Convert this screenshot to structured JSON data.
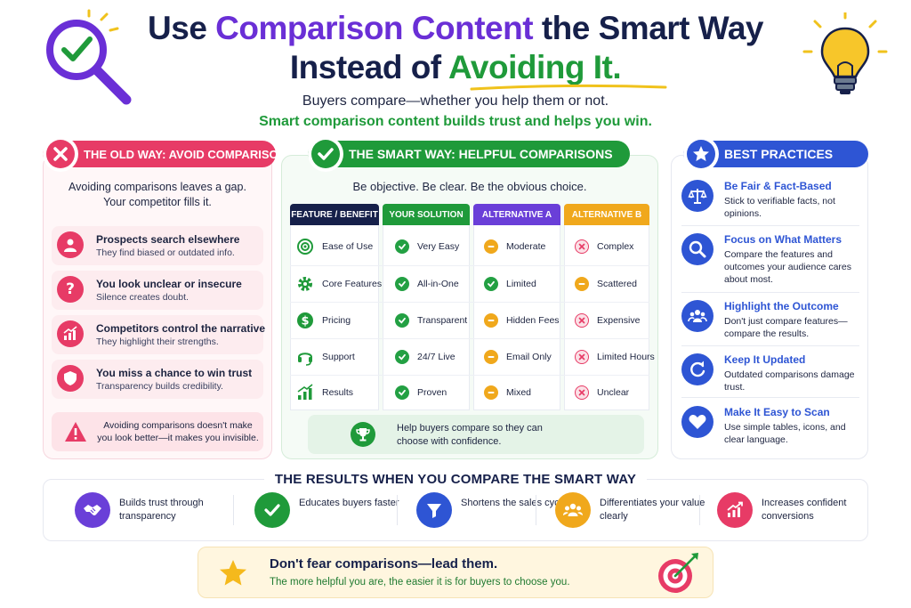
{
  "header": {
    "title_line1_pre": "Use ",
    "title_line1_accent": "Comparison Content",
    "title_line1_post": " the Smart Way",
    "title_line2_pre": "Instead of ",
    "title_line2_accent": "Avoiding It.",
    "subtitle1": "Buyers compare—whether you help them or not.",
    "subtitle2": "Smart comparison content builds trust and helps you win."
  },
  "old_way": {
    "heading": "THE OLD WAY: AVOID COMPARISONS",
    "intro_line1": "Avoiding comparisons leaves a gap.",
    "intro_line2": "Your competitor fills it.",
    "items": [
      {
        "title": "Prospects search elsewhere",
        "desc": "They find biased or outdated info.",
        "icon": "user-icon"
      },
      {
        "title": "You look unclear or insecure",
        "desc": "Silence creates doubt.",
        "icon": "question-icon"
      },
      {
        "title": "Competitors control the narrative",
        "desc": "They highlight their strengths.",
        "icon": "chart-up-icon"
      },
      {
        "title": "You miss a chance to win trust",
        "desc": "Transparency builds credibility.",
        "icon": "shield-icon"
      }
    ],
    "warning": "Avoiding comparisons doesn't make you look better—it makes you invisible."
  },
  "smart_way": {
    "heading": "THE SMART WAY: HELPFUL COMPARISONS",
    "intro": "Be objective. Be clear. Be the obvious choice.",
    "columns": [
      "FEATURE / BENEFIT",
      "YOUR SOLUTION",
      "ALTERNATIVE A",
      "ALTERNATIVE B"
    ],
    "rows": [
      {
        "feature": "Ease of Use",
        "icon": "target-icon",
        "yours": "Very Easy",
        "alt_a": "Moderate",
        "alt_a_status": "mid",
        "alt_b": "Complex",
        "alt_b_status": "no"
      },
      {
        "feature": "Core Features",
        "icon": "gear-icon",
        "yours": "All-in-One",
        "alt_a": "Limited",
        "alt_a_status": "ok",
        "alt_b": "Scattered",
        "alt_b_status": "mid"
      },
      {
        "feature": "Pricing",
        "icon": "dollar-icon",
        "yours": "Transparent",
        "alt_a": "Hidden Fees",
        "alt_a_status": "mid",
        "alt_b": "Expensive",
        "alt_b_status": "no"
      },
      {
        "feature": "Support",
        "icon": "headset-icon",
        "yours": "24/7 Live",
        "alt_a": "Email Only",
        "alt_a_status": "mid",
        "alt_b": "Limited Hours",
        "alt_b_status": "no"
      },
      {
        "feature": "Results",
        "icon": "bar-chart-icon",
        "yours": "Proven",
        "alt_a": "Mixed",
        "alt_a_status": "mid",
        "alt_b": "Unclear",
        "alt_b_status": "no"
      }
    ],
    "footer": "Help buyers compare so they can choose with confidence."
  },
  "best_practices": {
    "heading": "BEST PRACTICES",
    "items": [
      {
        "title": "Be Fair & Fact-Based",
        "desc": "Stick to verifiable facts, not opinions.",
        "icon": "scale-icon"
      },
      {
        "title": "Focus on What Matters",
        "desc": "Compare the features and outcomes your audience cares about most.",
        "icon": "search-icon"
      },
      {
        "title": "Highlight the Outcome",
        "desc": "Don't just compare features—compare the results.",
        "icon": "people-icon"
      },
      {
        "title": "Keep It Updated",
        "desc": "Outdated comparisons damage trust.",
        "icon": "refresh-icon"
      },
      {
        "title": "Make It Easy to Scan",
        "desc": "Use simple tables, icons, and clear language.",
        "icon": "heart-icon"
      }
    ]
  },
  "results": {
    "heading": "THE RESULTS WHEN YOU COMPARE THE SMART WAY",
    "items": [
      {
        "text": "Builds trust through transparency",
        "icon": "handshake-icon",
        "color": "#6a3fd8"
      },
      {
        "text": "Educates buyers faster",
        "icon": "check-icon",
        "color": "#1f9a3a"
      },
      {
        "text": "Shortens the sales cycle",
        "icon": "funnel-icon",
        "color": "#2e55d4"
      },
      {
        "text": "Differentiates your value clearly",
        "icon": "group-icon",
        "color": "#f0a81c"
      },
      {
        "text": "Increases confident conversions",
        "icon": "growth-icon",
        "color": "#e73b66"
      }
    ]
  },
  "footer": {
    "title": "Don't fear comparisons—lead them.",
    "desc": "The more helpful you are, the easier it is for buyers to choose you."
  },
  "colors": {
    "navy": "#16204a",
    "purple": "#6a2fd6",
    "green": "#1f9a3a",
    "pink": "#e73b66",
    "blue": "#2e55d4",
    "orange": "#f0a81c"
  }
}
